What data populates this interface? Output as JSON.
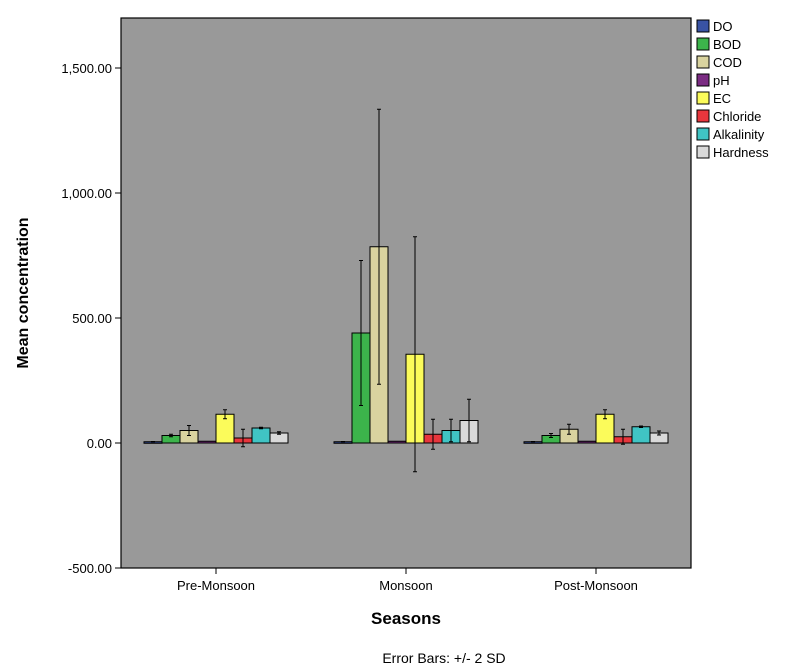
{
  "chart_data": {
    "type": "bar",
    "categories": [
      "Pre-Monsoon",
      "Monsoon",
      "Post-Monsoon"
    ],
    "xlabel": "Seasons",
    "ylabel": "Mean concentration",
    "ylim": [
      -500,
      1700
    ],
    "yticks": [
      -500,
      0,
      500,
      1000,
      1500
    ],
    "ytick_labels": [
      "-500.00",
      "0.00",
      "500.00",
      "1,000.00",
      "1,500.00"
    ],
    "legend_position": "right-outside",
    "grid": false,
    "footnote": "Error Bars: +/- 2 SD",
    "plot_background": "#999999",
    "series": [
      {
        "name": "DO",
        "color": "#3953a4",
        "values": [
          5,
          5,
          5
        ],
        "error": [
          1,
          1,
          1
        ]
      },
      {
        "name": "BOD",
        "color": "#3cb44b",
        "values": [
          30,
          440,
          30
        ],
        "error": [
          5,
          290,
          8
        ]
      },
      {
        "name": "COD",
        "color": "#d9d39f",
        "values": [
          50,
          785,
          55
        ],
        "error": [
          20,
          550,
          20
        ]
      },
      {
        "name": "pH",
        "color": "#7b2c83",
        "values": [
          7,
          7,
          7
        ],
        "error": [
          0,
          0,
          0
        ]
      },
      {
        "name": "EC",
        "color": "#fbfb5a",
        "values": [
          115,
          355,
          115
        ],
        "error": [
          18,
          470,
          18
        ]
      },
      {
        "name": "Chloride",
        "color": "#e8363d",
        "values": [
          20,
          35,
          25
        ],
        "error": [
          35,
          60,
          30
        ]
      },
      {
        "name": "Alkalinity",
        "color": "#40c4c4",
        "values": [
          60,
          50,
          65
        ],
        "error": [
          3,
          45,
          3
        ]
      },
      {
        "name": "Hardness",
        "color": "#d9d9d9",
        "values": [
          40,
          90,
          40
        ],
        "error": [
          5,
          85,
          8
        ]
      }
    ]
  }
}
